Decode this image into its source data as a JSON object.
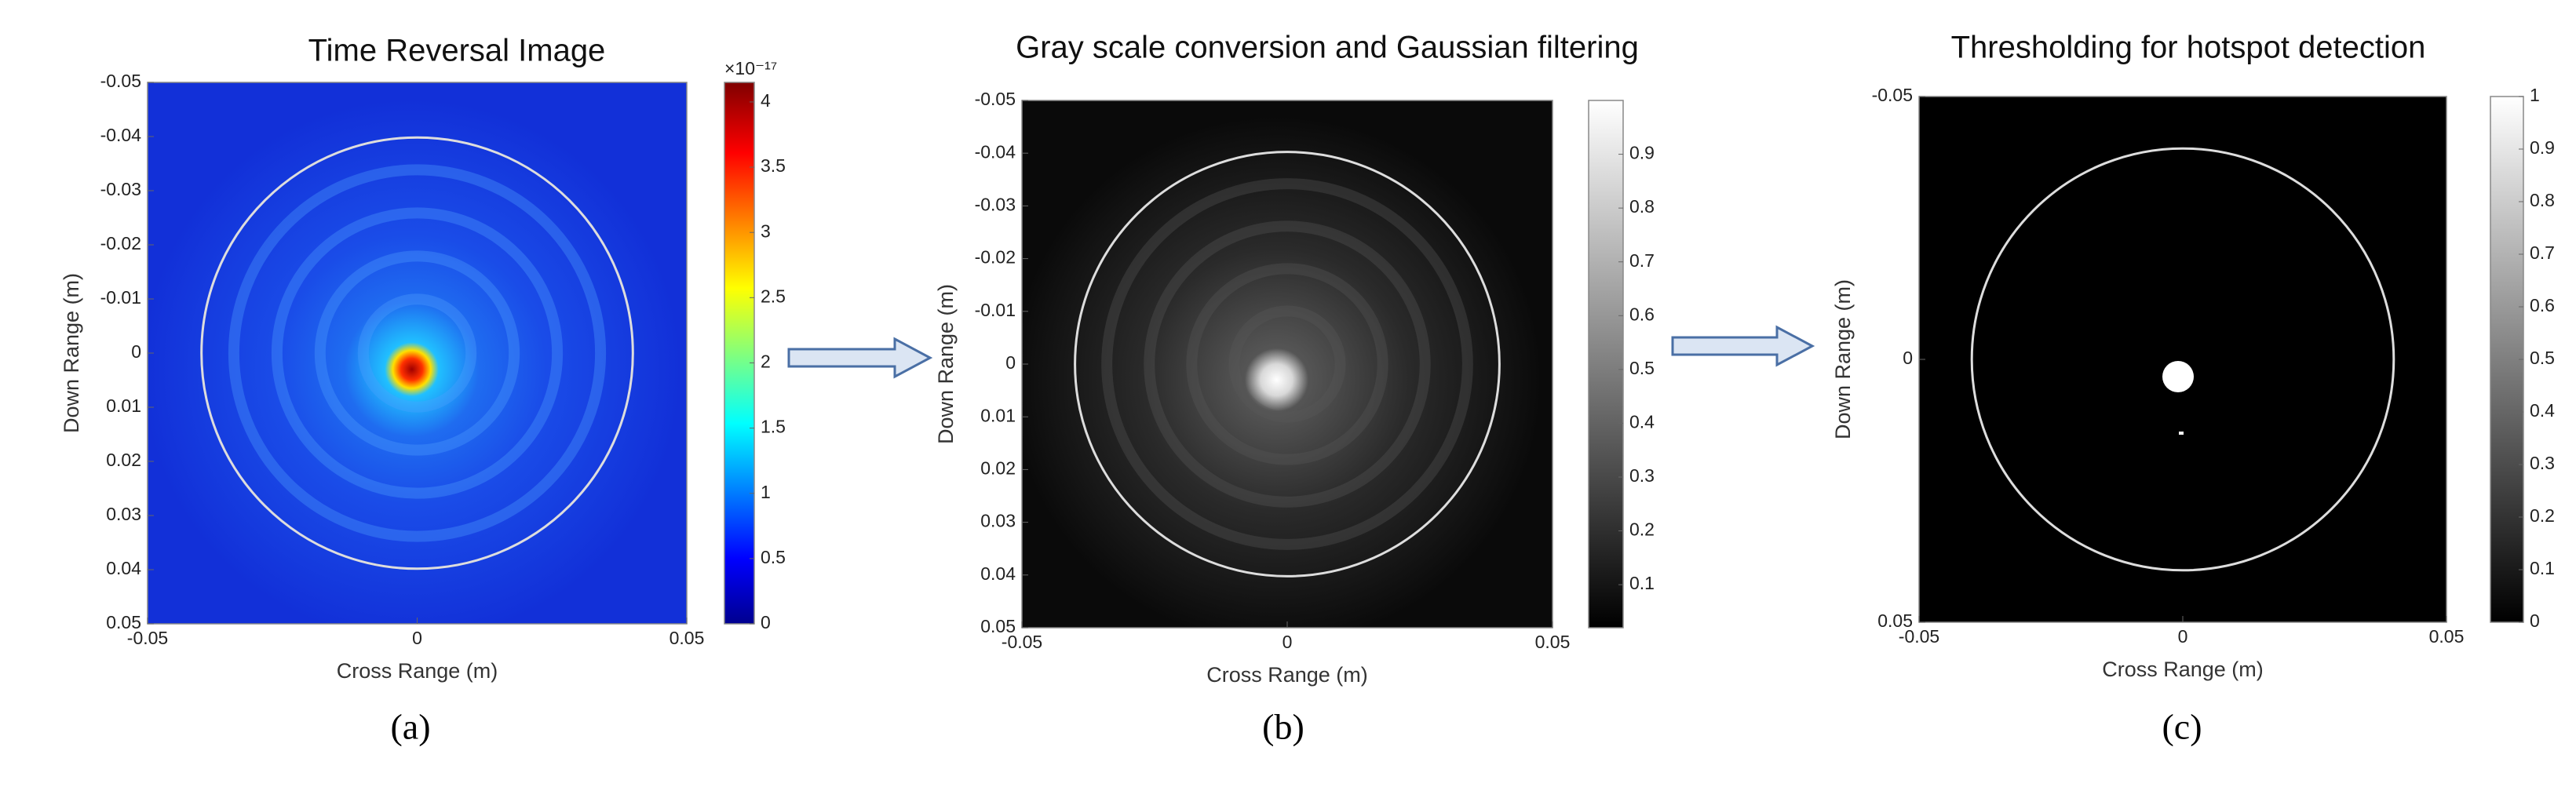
{
  "chart_data": [
    {
      "type": "heatmap",
      "title": "Time Reversal Image",
      "xlabel": "Cross Range (m)",
      "ylabel": "Down Range (m)",
      "caption": "(a)",
      "xlim": [
        -0.05,
        0.05
      ],
      "xticks": [
        -0.05,
        0,
        0.05
      ],
      "ylim": [
        -0.05,
        0.05
      ],
      "y_reversed": true,
      "yticks": [
        -0.05,
        -0.04,
        -0.03,
        -0.02,
        -0.01,
        0,
        0.01,
        0.02,
        0.03,
        0.04,
        0.05
      ],
      "colormap": "jet",
      "colorbar": {
        "label": "×10⁻¹⁷",
        "clim": [
          0,
          4.15
        ],
        "ticks": [
          0,
          0.5,
          1,
          1.5,
          2,
          2.5,
          3,
          3.5,
          4
        ]
      }
    },
    {
      "type": "heatmap",
      "title": "Gray scale conversion and Gaussian filtering",
      "xlabel": "Cross Range (m)",
      "ylabel": "Down Range (m)",
      "caption": "(b)",
      "xlim": [
        -0.05,
        0.05
      ],
      "xticks": [
        -0.05,
        0,
        0.05
      ],
      "ylim": [
        -0.05,
        0.05
      ],
      "y_reversed": true,
      "yticks": [
        -0.05,
        -0.04,
        -0.03,
        -0.02,
        -0.01,
        0,
        0.01,
        0.02,
        0.03,
        0.04,
        0.05
      ],
      "colormap": "gray",
      "colorbar": {
        "clim": [
          0.02,
          1
        ],
        "ticks": [
          0.1,
          0.2,
          0.3,
          0.4,
          0.5,
          0.6,
          0.7,
          0.8,
          0.9
        ]
      }
    },
    {
      "type": "heatmap",
      "title": "Thresholding for hotspot detection",
      "xlabel": "Cross Range (m)",
      "ylabel": "Down Range (m)",
      "caption": "(c)",
      "xlim": [
        -0.05,
        0.05
      ],
      "xticks": [
        -0.05,
        0,
        0.05
      ],
      "ylim": [
        -0.05,
        0.05
      ],
      "y_reversed": true,
      "yticks": [
        -0.05,
        0,
        0.05
      ],
      "colormap": "binary",
      "colorbar": {
        "clim": [
          0,
          1
        ],
        "ticks": [
          0,
          0.1,
          0.2,
          0.3,
          0.4,
          0.5,
          0.6,
          0.7,
          0.8,
          0.9,
          1
        ]
      }
    }
  ]
}
